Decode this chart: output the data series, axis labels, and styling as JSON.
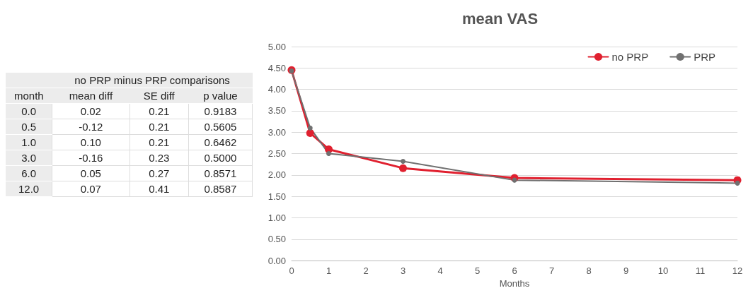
{
  "chart_data": [
    {
      "type": "other",
      "title": "no PRP minus PRP comparisons",
      "ylabel": "month",
      "categories": [
        "mean diff",
        "SE diff",
        "p value"
      ],
      "y_categories": [
        "0.0",
        "0.5",
        "1.0",
        "3.0",
        "6.0",
        "12.0"
      ],
      "cell_labels": [
        [
          "0.02",
          "0.21",
          "0.9183"
        ],
        [
          "-0.12",
          "0.21",
          "0.5605"
        ],
        [
          "0.10",
          "0.21",
          "0.6462"
        ],
        [
          "-0.16",
          "0.23",
          "0.5000"
        ],
        [
          "0.05",
          "0.27",
          "0.8571"
        ],
        [
          "0.07",
          "0.41",
          "0.8587"
        ]
      ]
    },
    {
      "type": "line",
      "title": "mean VAS",
      "xlabel": "Months",
      "x": [
        0,
        0.5,
        1,
        3,
        6,
        12
      ],
      "series": [
        {
          "name": "no PRP",
          "color": "#e0202f",
          "values": [
            4.45,
            2.98,
            2.6,
            2.16,
            1.93,
            1.88
          ]
        },
        {
          "name": "PRP",
          "color": "#707070",
          "values": [
            4.43,
            3.1,
            2.5,
            2.32,
            1.88,
            1.81
          ]
        }
      ],
      "xlim": [
        0,
        12
      ],
      "xticks": [
        0,
        1,
        2,
        3,
        4,
        5,
        6,
        7,
        8,
        9,
        10,
        11,
        12
      ],
      "ylim": [
        0,
        5
      ],
      "yticks": [
        {
          "value": 0,
          "label": "0.00"
        },
        {
          "value": 0.5,
          "label": "0.50"
        },
        {
          "value": 1,
          "label": "1.00"
        },
        {
          "value": 1.5,
          "label": "1.50"
        },
        {
          "value": 2,
          "label": "2.00"
        },
        {
          "value": 2.5,
          "label": "2.50"
        },
        {
          "value": 3,
          "label": "3.00"
        },
        {
          "value": 3.5,
          "label": "3.50"
        },
        {
          "value": 4,
          "label": "4.00"
        },
        {
          "value": 4.5,
          "label": "4.50"
        },
        {
          "value": 5,
          "label": "5.00"
        }
      ],
      "grid": "y",
      "legend": "top right",
      "marker": "circle",
      "line_style": "solid"
    }
  ]
}
